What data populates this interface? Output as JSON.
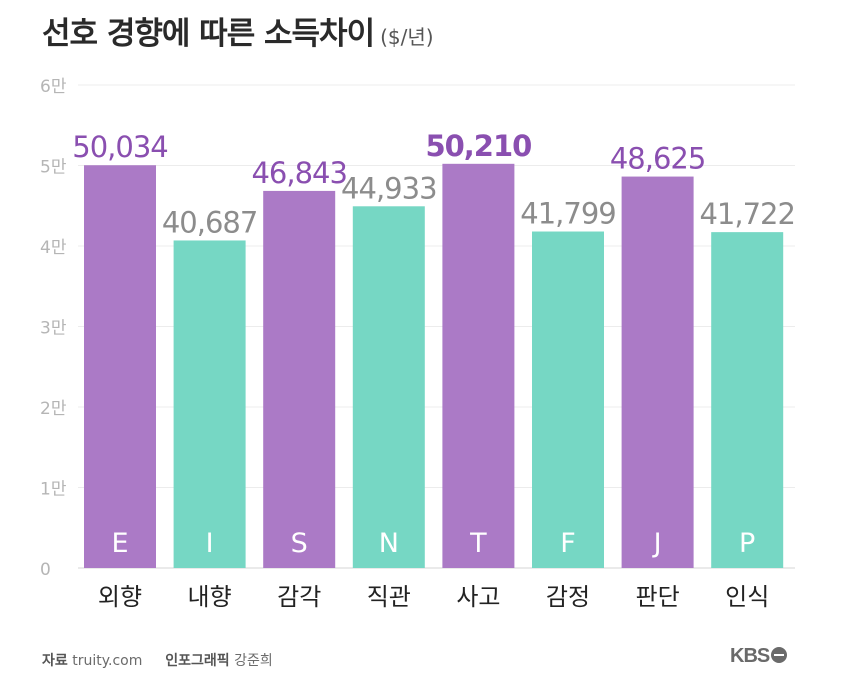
{
  "title": {
    "main": "선호 경향에 따른 소득차이",
    "unit": "($/년)"
  },
  "chart_data": {
    "type": "bar",
    "title": "선호 경향에 따른 소득차이",
    "unit": "($/년)",
    "ylabel": "",
    "xlabel": "",
    "ylim": [
      0,
      60000
    ],
    "y_ticks": [
      {
        "value": 0,
        "label": "0"
      },
      {
        "value": 10000,
        "label": "1만"
      },
      {
        "value": 20000,
        "label": "2만"
      },
      {
        "value": 30000,
        "label": "3만"
      },
      {
        "value": 40000,
        "label": "4만"
      },
      {
        "value": 50000,
        "label": "5만"
      },
      {
        "value": 60000,
        "label": "6만"
      }
    ],
    "categories": [
      "외향",
      "내향",
      "감각",
      "직관",
      "사고",
      "감정",
      "판단",
      "인식"
    ],
    "letters": [
      "E",
      "I",
      "S",
      "N",
      "T",
      "F",
      "J",
      "P"
    ],
    "values": [
      50034,
      40687,
      46843,
      44933,
      50210,
      41799,
      48625,
      41722
    ],
    "value_labels": [
      "50,034",
      "40,687",
      "46,843",
      "44,933",
      "50,210",
      "41,799",
      "48,625",
      "41,722"
    ],
    "highlight_index": 4,
    "colors": {
      "purple": "#ab7ac6",
      "teal": "#76d7c4",
      "purple_label": "#8a4fb0",
      "grey_label": "#8c8c8c",
      "axis_label": "#b5b5b5",
      "grid": "#ececec"
    },
    "bar_color_keys": [
      "purple",
      "teal",
      "purple",
      "teal",
      "purple",
      "teal",
      "purple",
      "teal"
    ]
  },
  "footer": {
    "source_label": "자료",
    "source_value": "truity.com",
    "graphic_label": "인포그래픽",
    "graphic_author": "강준희",
    "logo_text": "KBS"
  }
}
